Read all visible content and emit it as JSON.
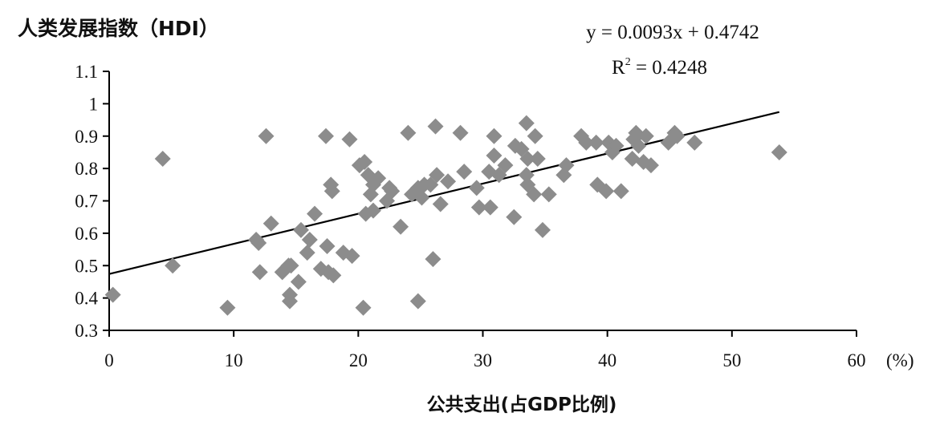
{
  "chart_data": {
    "type": "scatter",
    "ylabel": "人类发展指数（HDI）",
    "xlabel": "公共支出(占GDP比例)",
    "x_unit": "(%)",
    "equation": "y = 0.0093x + 0.4742",
    "r2_prefix": "R",
    "r2_sup": "2",
    "r2_value": " = 0.4248",
    "trendline": {
      "slope": 0.0093,
      "intercept": 0.4742,
      "x_range": [
        0,
        53.8
      ]
    },
    "xlim": [
      0,
      60
    ],
    "ylim": [
      0.3,
      1.1
    ],
    "xticks": [
      0,
      10,
      20,
      30,
      40,
      50,
      60
    ],
    "yticks": [
      0.3,
      0.4,
      0.5,
      0.6,
      0.7,
      0.8,
      0.9,
      1.0,
      1.1
    ],
    "ytick_labels": [
      "0.3",
      "0.4",
      "0.5",
      "0.6",
      "0.7",
      "0.8",
      "0.9",
      "1",
      "1.1"
    ],
    "marker_color": "#8c8c8c",
    "line_color": "#000000",
    "grid": false,
    "legend": "none",
    "points": [
      [
        0.3,
        0.41
      ],
      [
        4.3,
        0.83
      ],
      [
        5.1,
        0.5
      ],
      [
        9.5,
        0.37
      ],
      [
        11.8,
        0.58
      ],
      [
        12.0,
        0.57
      ],
      [
        12.1,
        0.48
      ],
      [
        12.6,
        0.9
      ],
      [
        13.0,
        0.63
      ],
      [
        13.9,
        0.48
      ],
      [
        14.4,
        0.5
      ],
      [
        14.5,
        0.41
      ],
      [
        14.5,
        0.39
      ],
      [
        14.6,
        0.5
      ],
      [
        15.2,
        0.45
      ],
      [
        15.4,
        0.61
      ],
      [
        15.9,
        0.54
      ],
      [
        16.1,
        0.58
      ],
      [
        16.5,
        0.66
      ],
      [
        17.0,
        0.49
      ],
      [
        17.4,
        0.9
      ],
      [
        17.5,
        0.56
      ],
      [
        17.6,
        0.48
      ],
      [
        17.8,
        0.75
      ],
      [
        17.9,
        0.73
      ],
      [
        18.0,
        0.47
      ],
      [
        18.8,
        0.54
      ],
      [
        19.3,
        0.89
      ],
      [
        19.5,
        0.53
      ],
      [
        20.1,
        0.81
      ],
      [
        20.4,
        0.37
      ],
      [
        20.5,
        0.82
      ],
      [
        20.6,
        0.66
      ],
      [
        20.8,
        0.78
      ],
      [
        21.0,
        0.72
      ],
      [
        21.2,
        0.75
      ],
      [
        21.2,
        0.67
      ],
      [
        21.6,
        0.77
      ],
      [
        22.3,
        0.7
      ],
      [
        22.5,
        0.74
      ],
      [
        22.7,
        0.73
      ],
      [
        23.4,
        0.62
      ],
      [
        24.0,
        0.91
      ],
      [
        24.3,
        0.72
      ],
      [
        24.8,
        0.39
      ],
      [
        24.8,
        0.74
      ],
      [
        25.1,
        0.71
      ],
      [
        25.3,
        0.75
      ],
      [
        25.8,
        0.75
      ],
      [
        26.0,
        0.52
      ],
      [
        26.2,
        0.93
      ],
      [
        26.3,
        0.78
      ],
      [
        26.6,
        0.69
      ],
      [
        27.2,
        0.76
      ],
      [
        28.2,
        0.91
      ],
      [
        28.5,
        0.79
      ],
      [
        29.5,
        0.74
      ],
      [
        29.7,
        0.68
      ],
      [
        30.5,
        0.79
      ],
      [
        30.6,
        0.68
      ],
      [
        30.9,
        0.84
      ],
      [
        30.9,
        0.9
      ],
      [
        31.3,
        0.78
      ],
      [
        31.8,
        0.81
      ],
      [
        32.5,
        0.65
      ],
      [
        32.6,
        0.87
      ],
      [
        33.1,
        0.86
      ],
      [
        33.5,
        0.94
      ],
      [
        33.5,
        0.78
      ],
      [
        33.6,
        0.83
      ],
      [
        33.6,
        0.75
      ],
      [
        34.1,
        0.72
      ],
      [
        34.2,
        0.9
      ],
      [
        34.4,
        0.83
      ],
      [
        34.8,
        0.61
      ],
      [
        35.3,
        0.72
      ],
      [
        36.5,
        0.78
      ],
      [
        36.7,
        0.81
      ],
      [
        37.9,
        0.9
      ],
      [
        38.3,
        0.88
      ],
      [
        39.1,
        0.88
      ],
      [
        39.2,
        0.75
      ],
      [
        39.9,
        0.73
      ],
      [
        40.1,
        0.88
      ],
      [
        40.4,
        0.85
      ],
      [
        40.7,
        0.87
      ],
      [
        41.1,
        0.73
      ],
      [
        42.0,
        0.83
      ],
      [
        42.1,
        0.89
      ],
      [
        42.3,
        0.91
      ],
      [
        42.5,
        0.87
      ],
      [
        42.9,
        0.82
      ],
      [
        43.1,
        0.9
      ],
      [
        43.5,
        0.81
      ],
      [
        44.9,
        0.88
      ],
      [
        45.4,
        0.91
      ],
      [
        45.6,
        0.9
      ],
      [
        47.0,
        0.88
      ],
      [
        53.8,
        0.85
      ]
    ]
  }
}
